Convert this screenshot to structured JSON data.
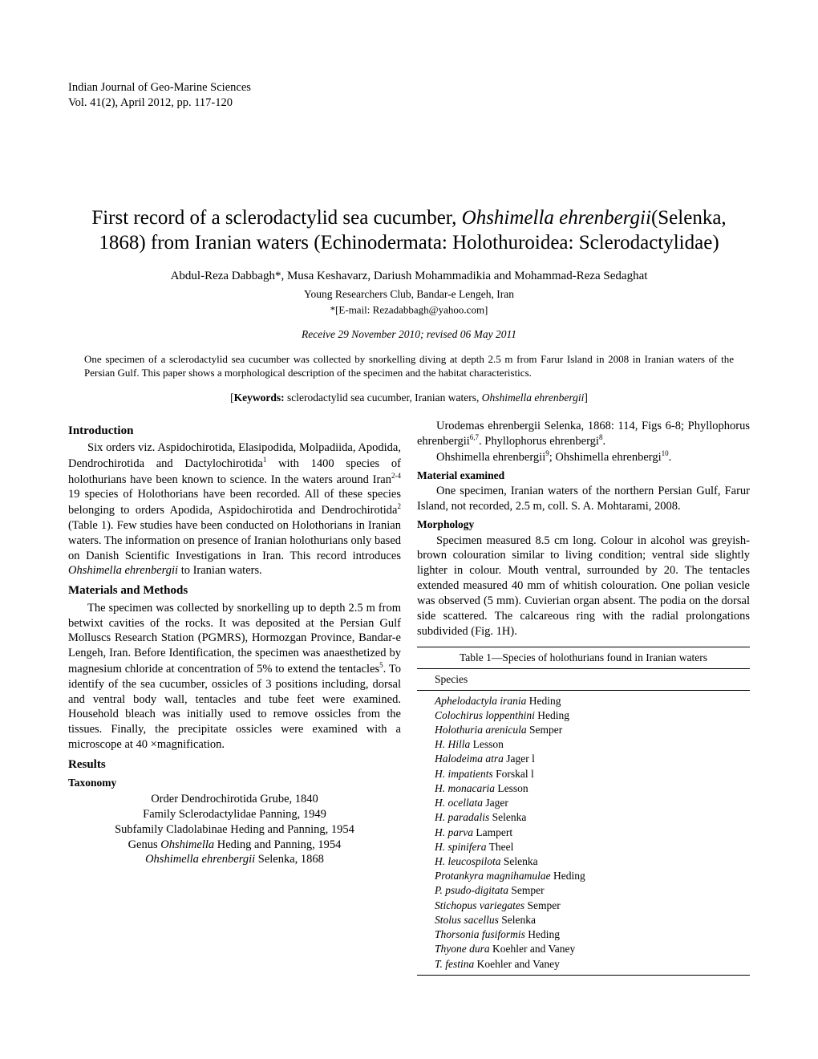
{
  "journal": {
    "name": "Indian Journal of Geo-Marine Sciences",
    "volume": "Vol. 41(2), April 2012, pp. 117-120"
  },
  "title": {
    "part1": "First record of a sclerodactylid sea cucumber, ",
    "italic": "Ohshimella ehrenbergii",
    "part2": "(Selenka, 1868) from Iranian waters (Echinodermata: Holothuroidea: Sclerodactylidae)"
  },
  "authors": "Abdul-Reza Dabbagh*, Musa Keshavarz, Dariush Mohammadikia and Mohammad-Reza Sedaghat",
  "affiliation": "Young Researchers Club, Bandar-e Lengeh, Iran",
  "email": "*[E-mail: Rezadabbagh@yahoo.com]",
  "dates": "Receive 29 November 2010; revised 06 May 2011",
  "abstract": "One specimen of a sclerodactylid sea cucumber was collected by snorkelling diving at depth 2.5 m from Farur Island in 2008 in Iranian waters of the Persian Gulf. This paper shows a morphological description of the specimen and the habitat characteristics.",
  "keywords": {
    "label": "Keywords:",
    "text": " sclerodactylid sea cucumber, Iranian waters, ",
    "italic": "Ohshimella ehrenbergii"
  },
  "sections": {
    "introduction": {
      "heading": "Introduction",
      "text1": "Six orders viz. Aspidochirotida, Elasipodida, Molpadiida, Apodida, Dendrochirotida and Dactylochirotida",
      "sup1": "1",
      "text2": " with 1400 species of holothurians have been known to science. In the waters around Iran",
      "sup2": "2-4 ",
      "text3": "19 species of Holothorians have been recorded. All of these species belonging to orders Apodida, Aspidochirotida and Dendrochirotida",
      "sup3": "2",
      "text4": " (Table 1). Few studies have been conducted on Holothorians in Iranian waters. The information on presence of Iranian holothurians only based on Danish Scientific Investigations in Iran. This record introduces ",
      "italic1": "Ohshimella ehrenbergii",
      "text5": " to Iranian waters."
    },
    "materials": {
      "heading": "Materials and Methods",
      "text1": "The specimen was collected by snorkelling up to depth 2.5 m from betwixt cavities of the rocks. It was deposited at the Persian Gulf Molluscs Research Station (PGMRS), Hormozgan Province, Bandar-e Lengeh, Iran. Before Identification, the specimen was anaesthetized by magnesium chloride at concentration of 5% to extend the tentacles",
      "sup1": "5",
      "text2": ". To identify of the sea cucumber, ossicles of 3 positions including, dorsal and ventral body wall, tentacles and tube feet were examined. Household bleach was initially used to remove ossicles from the tissues. Finally, the precipitate ossicles were examined with a microscope at 40 ×magnification."
    },
    "results": {
      "heading": "Results"
    },
    "taxonomy": {
      "heading": "Taxonomy",
      "lines": [
        {
          "text": "Order Dendrochirotida Grube, 1840"
        },
        {
          "text": "Family Sclerodactylidae Panning, 1949"
        },
        {
          "text": "Subfamily Cladolabinae Heding and Panning, 1954"
        },
        {
          "text1": "Genus ",
          "italic": "Ohshimella",
          "text2": " Heding and Panning, 1954"
        },
        {
          "italic": "Ohshimella ehrenbergii",
          "text2": " Selenka, 1868"
        }
      ]
    },
    "synonymy": {
      "line1_text1": "Urodemas ehrenbergii Selenka, 1868: 114, Figs 6-8; Phyllophorus ehrenbergii",
      "line1_sup1": "6,7",
      "line1_text2": ". Phyllophorus ehrenbergi",
      "line1_sup2": "8",
      "line1_text3": ".",
      "line2_text1": "Ohshimella ehrenbergii",
      "line2_sup1": "9",
      "line2_text2": "; Ohshimella ehrenbergi",
      "line2_sup2": "10",
      "line2_text3": "."
    },
    "material_examined": {
      "heading": "Material examined",
      "text": "One specimen, Iranian waters of the northern Persian Gulf, Farur Island, not recorded, 2.5 m, coll. S. A. Mohtarami, 2008."
    },
    "morphology": {
      "heading": "Morphology",
      "text": "Specimen measured 8.5 cm long. Colour in alcohol was greyish-brown colouration similar to living condition; ventral side slightly lighter in colour. Mouth ventral, surrounded by 20. The tentacles extended measured 40 mm of whitish colouration. One polian vesicle was observed (5 mm). Cuvierian organ absent. The podia on the dorsal side scattered. The calcareous ring with the radial prolongations subdivided (Fig. 1H)."
    }
  },
  "table": {
    "title": "Table 1—Species of holothurians found in Iranian waters",
    "header": "Species",
    "rows": [
      {
        "species": "Aphelodactyla irania",
        "author": " Heding"
      },
      {
        "species": "Colochirus loppenthini",
        "author": " Heding"
      },
      {
        "species": "Holothuria arenicula",
        "author": " Semper"
      },
      {
        "species": "H. Hilla",
        "author": " Lesson"
      },
      {
        "species": "Halodeima atra",
        "author": " Jager l"
      },
      {
        "species": "H. impatients",
        "author": " Forskal l"
      },
      {
        "species": "H. monacaria",
        "author": " Lesson"
      },
      {
        "species": "H. ocellata",
        "author": " Jager"
      },
      {
        "species": "H. paradalis",
        "author": " Selenka"
      },
      {
        "species": "H. parva",
        "author": " Lampert"
      },
      {
        "species": "H. spinifera",
        "author": " Theel"
      },
      {
        "species": "H. leucospilota",
        "author": " Selenka"
      },
      {
        "species": "Protankyra magnihamulae",
        "author": " Heding"
      },
      {
        "species": "P. psudo-digitata",
        "author": " Semper"
      },
      {
        "species": "Stichopus variegates",
        "author": " Semper"
      },
      {
        "species": "Stolus sacellus",
        "author": " Selenka"
      },
      {
        "species": "Thorsonia fusiformis",
        "author": " Heding"
      },
      {
        "species": "Thyone dura",
        "author": " Koehler and Vaney"
      },
      {
        "species": "T. festina",
        "author": " Koehler and Vaney"
      }
    ]
  }
}
